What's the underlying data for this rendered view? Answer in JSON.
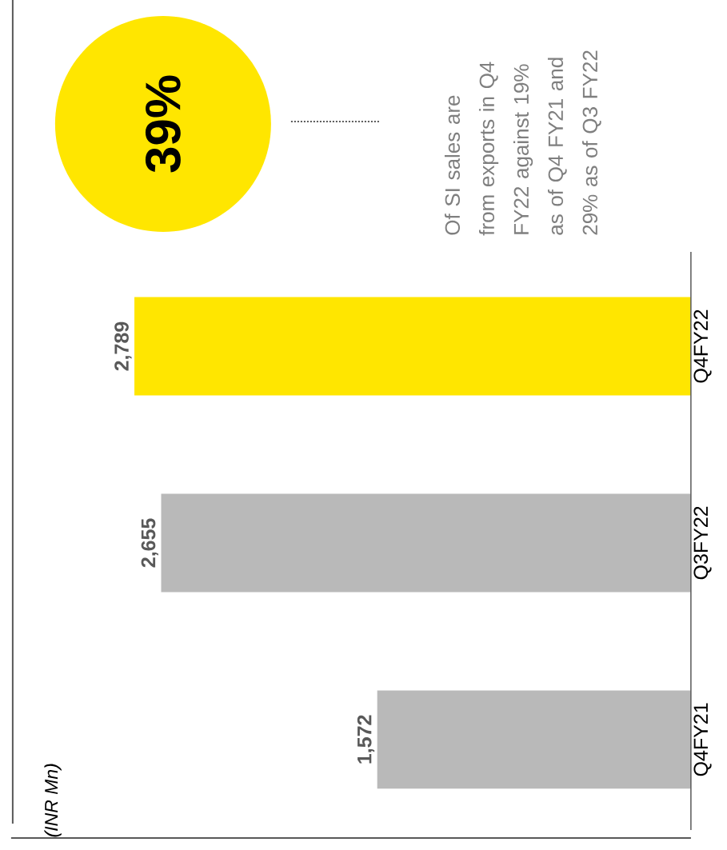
{
  "chart_data": {
    "type": "bar",
    "orientation": "horizontal",
    "categories": [
      "Q4FY22",
      "Q3FY22",
      "Q4FY21"
    ],
    "values": [
      2789,
      2655,
      1572
    ],
    "colors": [
      "#ffe600",
      "#b9b9b9",
      "#b9b9b9"
    ],
    "value_labels": [
      "2,789",
      "2,655",
      "1,572"
    ],
    "annotations": [
      "(INR Mn)",
      "39%",
      "Of SI sales are from exports in Q4 FY22 against 19% as of Q4 FY21 and 29% as of Q3 FY22"
    ]
  }
}
